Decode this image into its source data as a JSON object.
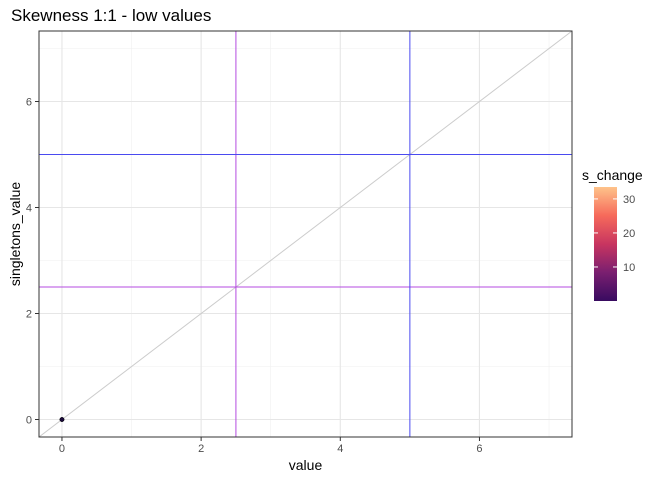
{
  "chart_data": {
    "type": "scatter",
    "title": "Skewness 1:1 - low values",
    "xlabel": "value",
    "ylabel": "singletons_value",
    "xlim": [
      -0.33,
      7.33
    ],
    "ylim": [
      -0.33,
      7.33
    ],
    "xticks": [
      0,
      2,
      4,
      6
    ],
    "yticks": [
      0,
      2,
      4,
      6
    ],
    "grid": true,
    "points": [
      {
        "x": 0,
        "y": 0,
        "s_change": 0.5
      }
    ],
    "reference_lines": [
      {
        "kind": "diagonal",
        "slope": 1,
        "intercept": 0,
        "color": "#cccccc"
      },
      {
        "kind": "vertical",
        "value": 2.5,
        "color": "#b44be0"
      },
      {
        "kind": "horizontal",
        "value": 2.5,
        "color": "#b44be0"
      },
      {
        "kind": "vertical",
        "value": 5,
        "color": "#4a4af0"
      },
      {
        "kind": "horizontal",
        "value": 5,
        "color": "#4a4af0"
      }
    ],
    "legend": {
      "title": "s_change",
      "position": "right",
      "range": [
        0,
        33.5
      ],
      "ticks": [
        10,
        20,
        30
      ],
      "colormap": "magma",
      "colors": [
        "#000004",
        "#3b0f70",
        "#8c2981",
        "#de4968",
        "#fe9f6d",
        "#fcfdbf"
      ]
    }
  }
}
